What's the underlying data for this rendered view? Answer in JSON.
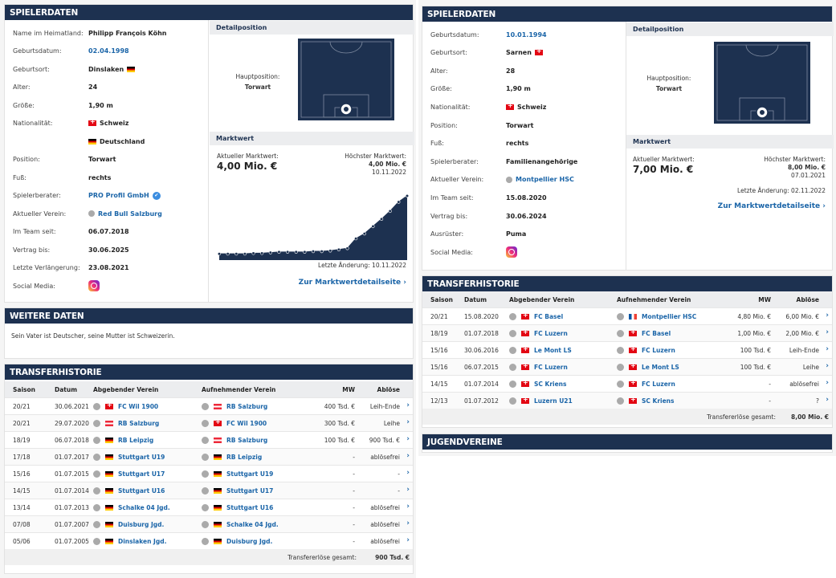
{
  "left": {
    "spielerdaten": {
      "title": "SPIELERDATEN",
      "rows": [
        {
          "label": "Name im Heimatland:",
          "value": "Philipp François Köhn"
        },
        {
          "label": "Geburtsdatum:",
          "value": "02.04.1998",
          "link": true
        },
        {
          "label": "Geburtsort:",
          "value": "Dinslaken",
          "flag": "de"
        },
        {
          "label": "Alter:",
          "value": "24"
        },
        {
          "label": "Größe:",
          "value": "1,90 m"
        },
        {
          "label": "Nationalität:",
          "value": "Schweiz",
          "flag": "ch"
        },
        {
          "label": "",
          "value": "Deutschland",
          "flag": "de"
        },
        {
          "label": "Position:",
          "value": "Torwart"
        },
        {
          "label": "Fuß:",
          "value": "rechts"
        },
        {
          "label": "Spielerberater:",
          "value": "PRO Profil GmbH",
          "link": true,
          "verified": true
        },
        {
          "label": "Aktueller Verein:",
          "value": "Red Bull Salzburg",
          "link": true,
          "club": true
        },
        {
          "label": "Im Team seit:",
          "value": "06.07.2018"
        },
        {
          "label": "Vertrag bis:",
          "value": "30.06.2025"
        },
        {
          "label": "Letzte Verlängerung:",
          "value": "23.08.2021"
        },
        {
          "label": "Social Media:",
          "value": "",
          "insta": true
        }
      ],
      "detail_title": "Detailposition",
      "haupt_label": "Hauptposition:",
      "haupt_value": "Torwart",
      "mw_title": "Marktwert",
      "mw_current_label": "Aktueller Marktwert:",
      "mw_current": "4,00 Mio. €",
      "mw_high_label": "Höchster Marktwert:",
      "mw_high": "4,00 Mio. €",
      "mw_high_date": "10.11.2022",
      "mw_last": "Letzte Änderung: 10.11.2022",
      "mw_link": "Zur Marktwertdetailseite",
      "mw_chart": [
        0.05,
        0.05,
        0.05,
        0.05,
        0.06,
        0.06,
        0.07,
        0.08,
        0.08,
        0.08,
        0.08,
        0.09,
        0.09,
        0.1,
        0.12,
        0.14,
        0.3,
        0.38,
        0.5,
        0.62,
        0.75,
        0.9,
        1.0
      ]
    },
    "weitere": {
      "title": "WEITERE DATEN",
      "text": "Sein Vater ist Deutscher, seine Mutter ist Schweizerin."
    },
    "transfer": {
      "title": "TRANSFERHISTORIE",
      "cols": [
        "Saison",
        "Datum",
        "Abgebender Verein",
        "Aufnehmender Verein",
        "MW",
        "Ablöse"
      ],
      "rows": [
        [
          "20/21",
          "30.06.2021",
          "FC Wil 1900",
          "ch",
          "RB Salzburg",
          "at",
          "400 Tsd. €",
          "Leih-Ende"
        ],
        [
          "20/21",
          "29.07.2020",
          "RB Salzburg",
          "at",
          "FC Wil 1900",
          "ch",
          "300 Tsd. €",
          "Leihe"
        ],
        [
          "18/19",
          "06.07.2018",
          "RB Leipzig",
          "de",
          "RB Salzburg",
          "at",
          "100 Tsd. €",
          "900 Tsd. €"
        ],
        [
          "17/18",
          "01.07.2017",
          "Stuttgart U19",
          "de",
          "RB Leipzig",
          "de",
          "-",
          "ablösefrei"
        ],
        [
          "15/16",
          "01.07.2015",
          "Stuttgart U17",
          "de",
          "Stuttgart U19",
          "de",
          "-",
          "-"
        ],
        [
          "14/15",
          "01.07.2014",
          "Stuttgart U16",
          "de",
          "Stuttgart U17",
          "de",
          "-",
          "-"
        ],
        [
          "13/14",
          "01.07.2013",
          "Schalke 04 Jgd.",
          "de",
          "Stuttgart U16",
          "de",
          "-",
          "ablösefrei"
        ],
        [
          "07/08",
          "01.07.2007",
          "Duisburg Jgd.",
          "de",
          "Schalke 04 Jgd.",
          "de",
          "-",
          "ablösefrei"
        ],
        [
          "05/06",
          "01.07.2005",
          "Dinslaken Jgd.",
          "de",
          "Duisburg Jgd.",
          "de",
          "-",
          "ablösefrei"
        ]
      ],
      "total_label": "Transfererlöse gesamt:",
      "total": "900 Tsd. €"
    }
  },
  "right": {
    "spielerdaten": {
      "title": "SPIELERDATEN",
      "rows": [
        {
          "label": "Geburtsdatum:",
          "value": "10.01.1994",
          "link": true
        },
        {
          "label": "Geburtsort:",
          "value": "Sarnen",
          "flag": "ch"
        },
        {
          "label": "Alter:",
          "value": "28"
        },
        {
          "label": "Größe:",
          "value": "1,90 m"
        },
        {
          "label": "Nationalität:",
          "value": "Schweiz",
          "flag": "ch"
        },
        {
          "label": "Position:",
          "value": "Torwart"
        },
        {
          "label": "Fuß:",
          "value": "rechts"
        },
        {
          "label": "Spielerberater:",
          "value": "Familienangehörige"
        },
        {
          "label": "Aktueller Verein:",
          "value": "Montpellier HSC",
          "link": true,
          "club": true
        },
        {
          "label": "Im Team seit:",
          "value": "15.08.2020"
        },
        {
          "label": "Vertrag bis:",
          "value": "30.06.2024"
        },
        {
          "label": "Ausrüster:",
          "value": "Puma"
        },
        {
          "label": "Social Media:",
          "value": "",
          "insta": true
        }
      ],
      "detail_title": "Detailposition",
      "haupt_label": "Hauptposition:",
      "haupt_value": "Torwart",
      "mw_title": "Marktwert",
      "mw_current_label": "Aktueller Marktwert:",
      "mw_current": "7,00 Mio. €",
      "mw_high_label": "Höchster Marktwert:",
      "mw_high": "8,00 Mio. €",
      "mw_high_date": "07.01.2021",
      "mw_last": "Letzte Änderung: 02.11.2022",
      "mw_link": "Zur Marktwertdetailseite"
    },
    "transfer": {
      "title": "TRANSFERHISTORIE",
      "cols": [
        "Saison",
        "Datum",
        "Abgebender Verein",
        "Aufnehmender Verein",
        "MW",
        "Ablöse"
      ],
      "rows": [
        [
          "20/21",
          "15.08.2020",
          "FC Basel",
          "ch",
          "Montpellier HSC",
          "fr",
          "4,80 Mio. €",
          "6,00 Mio. €"
        ],
        [
          "18/19",
          "01.07.2018",
          "FC Luzern",
          "ch",
          "FC Basel",
          "ch",
          "1,00 Mio. €",
          "2,00 Mio. €"
        ],
        [
          "15/16",
          "30.06.2016",
          "Le Mont LS",
          "ch",
          "FC Luzern",
          "ch",
          "100 Tsd. €",
          "Leih-Ende"
        ],
        [
          "15/16",
          "06.07.2015",
          "FC Luzern",
          "ch",
          "Le Mont LS",
          "ch",
          "100 Tsd. €",
          "Leihe"
        ],
        [
          "14/15",
          "01.07.2014",
          "SC Kriens",
          "ch",
          "FC Luzern",
          "ch",
          "-",
          "ablösefrei"
        ],
        [
          "12/13",
          "01.07.2012",
          "Luzern U21",
          "ch",
          "SC Kriens",
          "ch",
          "-",
          "?"
        ]
      ],
      "total_label": "Transfererlöse gesamt:",
      "total": "8,00 Mio. €"
    },
    "jugend": {
      "title": "JUGENDVEREINE"
    }
  }
}
